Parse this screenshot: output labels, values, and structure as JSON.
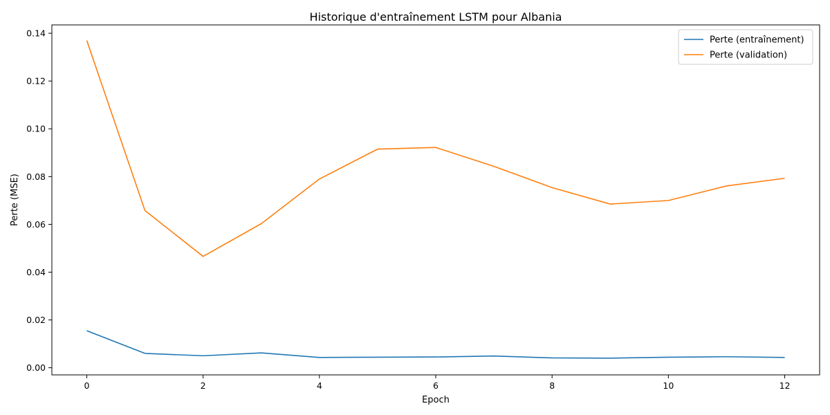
{
  "chart_data": {
    "type": "line",
    "title": "Historique d'entraînement LSTM pour Albania",
    "xlabel": "Epoch",
    "ylabel": "Perte (MSE)",
    "xlim": [
      -0.6,
      12.6
    ],
    "ylim": [
      -0.003,
      0.1435
    ],
    "xticks": [
      0,
      2,
      4,
      6,
      8,
      10,
      12
    ],
    "xtick_labels": [
      "0",
      "2",
      "4",
      "6",
      "8",
      "10",
      "12"
    ],
    "yticks": [
      0.0,
      0.02,
      0.04,
      0.06,
      0.08,
      0.1,
      0.12,
      0.14
    ],
    "ytick_labels": [
      "0.00",
      "0.02",
      "0.04",
      "0.06",
      "0.08",
      "0.10",
      "0.12",
      "0.14"
    ],
    "grid": false,
    "legend_position": "top-right",
    "x": [
      0,
      1,
      2,
      3,
      4,
      5,
      6,
      7,
      8,
      9,
      10,
      11,
      12
    ],
    "series": [
      {
        "name": "Perte (entraînement)",
        "color": "#1f77b4",
        "values": [
          0.0155,
          0.006,
          0.005,
          0.0062,
          0.0043,
          0.0044,
          0.0045,
          0.0049,
          0.0041,
          0.004,
          0.0044,
          0.0046,
          0.0043
        ]
      },
      {
        "name": "Perte (validation)",
        "color": "#ff7f0e",
        "values": [
          0.137,
          0.0658,
          0.0466,
          0.0603,
          0.079,
          0.0915,
          0.0922,
          0.0843,
          0.0754,
          0.0685,
          0.07,
          0.0761,
          0.0793
        ]
      }
    ]
  }
}
